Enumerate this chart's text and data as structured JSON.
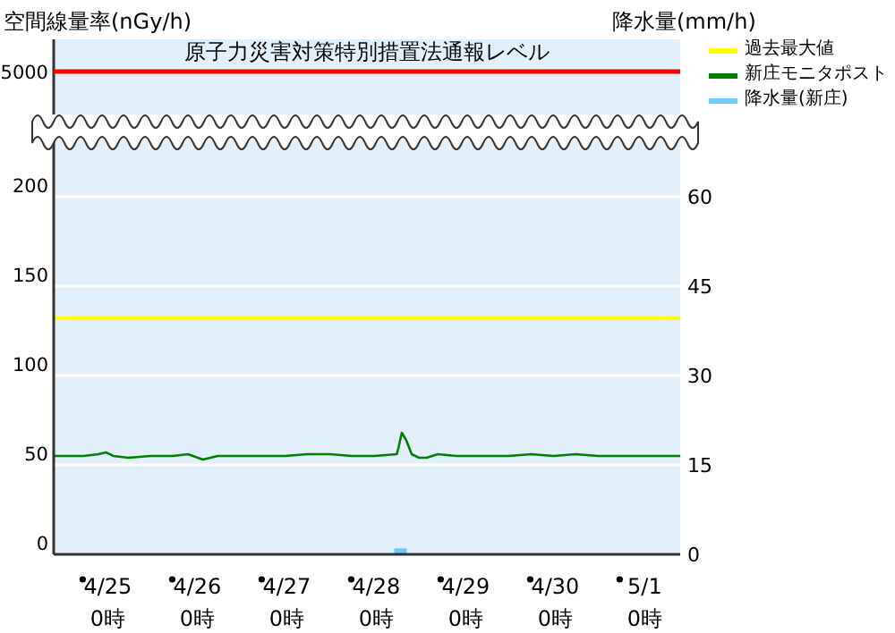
{
  "chart_data": [
    {
      "type": "other",
      "ylabel": "空間線量率(nGy/h)",
      "y2label": "降水量(mm/h)",
      "annotations": [
        "5000"
      ],
      "ref_lines": [
        {
          "axis": "y",
          "label": "原子力災害対策特別措置法通報レベル",
          "color": "#ff0000"
        }
      ]
    },
    {
      "type": "line",
      "xlim": [
        "--04-24T09:30",
        "--05-01T09:30"
      ],
      "ylim": [
        0,
        235
      ],
      "yticks": [
        0,
        50,
        100,
        150,
        200
      ],
      "y2lim": [
        0,
        70.5
      ],
      "y2ticks": [
        0,
        15,
        30,
        45,
        60
      ],
      "grid": "y",
      "legend": "right",
      "marker": "none",
      "xticks": [
        {
          "value": "--04-25T00:00",
          "label": "4/25\n0時"
        },
        {
          "value": "--04-26T00:00",
          "label": "4/26\n0時"
        },
        {
          "value": "--04-27T00:00",
          "label": "4/27\n0時"
        },
        {
          "value": "--04-28T00:00",
          "label": "4/28\n0時"
        },
        {
          "value": "--04-29T00:00",
          "label": "4/29\n0時"
        },
        {
          "value": "--04-30T00:00",
          "label": "4/30\n0時"
        },
        {
          "value": "--05-01T00:00",
          "label": "5/1\n0時"
        }
      ],
      "series": [
        {
          "name": "過去最大値",
          "color": "#ffff00",
          "x": [
            "--04-24T09:30",
            "--05-01T09:30"
          ],
          "values": [
            132,
            132
          ]
        },
        {
          "name": "新庄モニタポスト",
          "color": "#008000",
          "x": [
            "--04-24T09:30",
            "--04-24T13:30",
            "--04-24T17:30",
            "--04-24T21:30",
            "--04-24T23:30",
            "--04-25T01:30",
            "--04-25T05:30",
            "--04-25T11:30",
            "--04-25T17:30",
            "--04-25T21:30",
            "--04-26T01:30",
            "--04-26T05:30",
            "--04-26T11:30",
            "--04-26T17:30",
            "--04-26T23:30",
            "--04-27T05:30",
            "--04-27T11:30",
            "--04-27T17:30",
            "--04-27T23:30",
            "--04-28T05:30",
            "--04-28T06:00",
            "--04-28T06:50",
            "--04-28T08:00",
            "--04-28T09:30",
            "--04-28T11:30",
            "--04-28T13:30",
            "--04-28T16:30",
            "--04-28T21:30",
            "--04-29T05:30",
            "--04-29T11:30",
            "--04-29T17:30",
            "--04-29T23:30",
            "--04-30T05:30",
            "--04-30T11:30",
            "--04-30T17:30",
            "--04-30T23:30",
            "--05-01T05:30",
            "--05-01T09:30"
          ],
          "values": [
            55,
            55,
            55,
            56,
            57,
            55,
            54,
            55,
            55,
            56,
            53,
            55,
            55,
            55,
            55,
            56,
            56,
            55,
            55,
            56,
            60,
            68,
            64,
            56,
            54,
            54,
            56,
            55,
            55,
            55,
            56,
            55,
            56,
            55,
            55,
            55,
            55,
            55
          ]
        },
        {
          "name": "降水量(新庄)",
          "type": "bar",
          "axis": "y2",
          "color": "#66ccff",
          "x": [
            "--04-28T06:30"
          ],
          "values": [
            1
          ]
        }
      ]
    }
  ]
}
